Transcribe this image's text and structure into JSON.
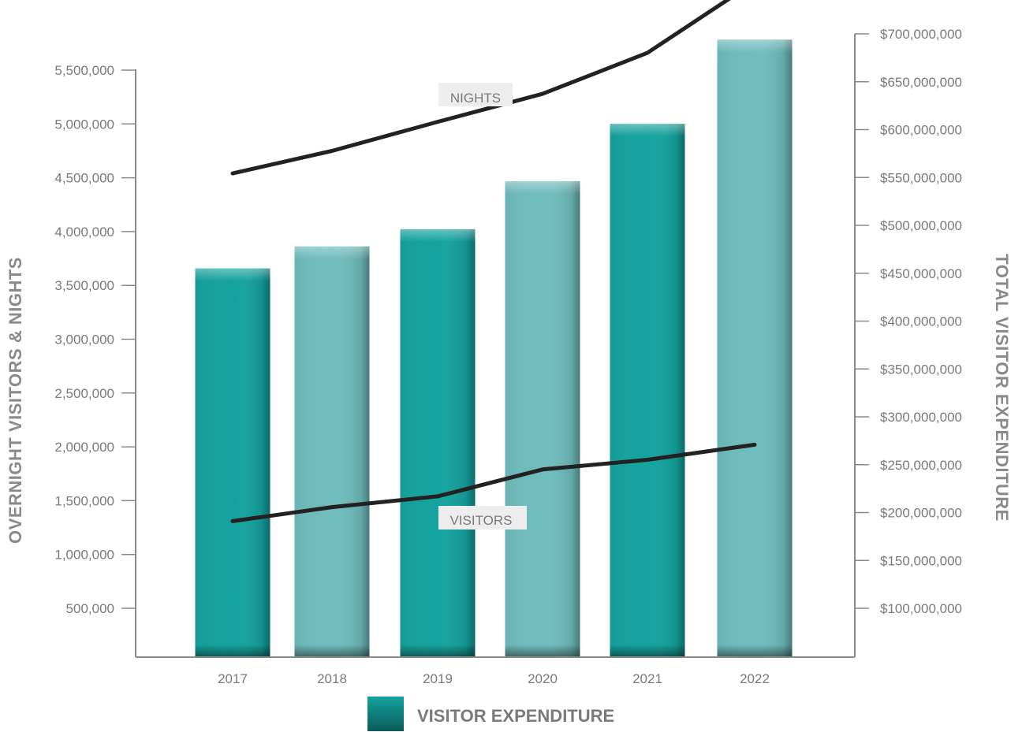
{
  "chart_data": {
    "type": "bar",
    "categories": [
      "2017",
      "2018",
      "2019",
      "2020",
      "2021",
      "2022"
    ],
    "y_left": {
      "label": "OVERNIGHT VISITORS & NIGHTS",
      "ticks": [
        500000,
        1000000,
        1500000,
        2000000,
        2500000,
        3000000,
        3500000,
        4000000,
        4500000,
        5000000,
        5500000
      ],
      "tick_labels": [
        "500,000",
        "1,000,000",
        "1,500,000",
        "2,000,000",
        "2,500,000",
        "3,000,000",
        "3,500,000",
        "4,000,000",
        "4,500,000",
        "5,000,000",
        "5,500,000"
      ]
    },
    "y_right": {
      "label": "TOTAL VISITOR EXPENDITURE",
      "ticks": [
        100000000,
        150000000,
        200000000,
        250000000,
        300000000,
        350000000,
        400000000,
        450000000,
        500000000,
        550000000,
        600000000,
        650000000,
        700000000
      ],
      "tick_labels": [
        "$100,000,000",
        "$150,000,000",
        "$200,000,000",
        "$250,000,000",
        "$300,000,000",
        "$350,000,000",
        "$400,000,000",
        "$450,000,000",
        "$500,000,000",
        "$550,000,000",
        "$600,000,000",
        "$650,000,000",
        "$700,000,000"
      ]
    },
    "series": [
      {
        "name": "VISITOR EXPENDITURE",
        "type": "bar",
        "axis": "right",
        "values": [
          455000000,
          478000000,
          496000000,
          546000000,
          606000000,
          694000000
        ],
        "colors": [
          "#14a39f",
          "#6fbcbd"
        ]
      },
      {
        "name": "NIGHTS",
        "type": "line",
        "axis": "left",
        "values": [
          4540000,
          4750000,
          5020000,
          5280000,
          5660000,
          6320000
        ],
        "color": "#222222"
      },
      {
        "name": "VISITORS",
        "type": "line",
        "axis": "left",
        "values": [
          1310000,
          1440000,
          1540000,
          1790000,
          1880000,
          2020000
        ],
        "color": "#222222"
      }
    ],
    "legend": {
      "position": "bottom",
      "label": "VISITOR EXPENDITURE"
    },
    "grid": false
  }
}
